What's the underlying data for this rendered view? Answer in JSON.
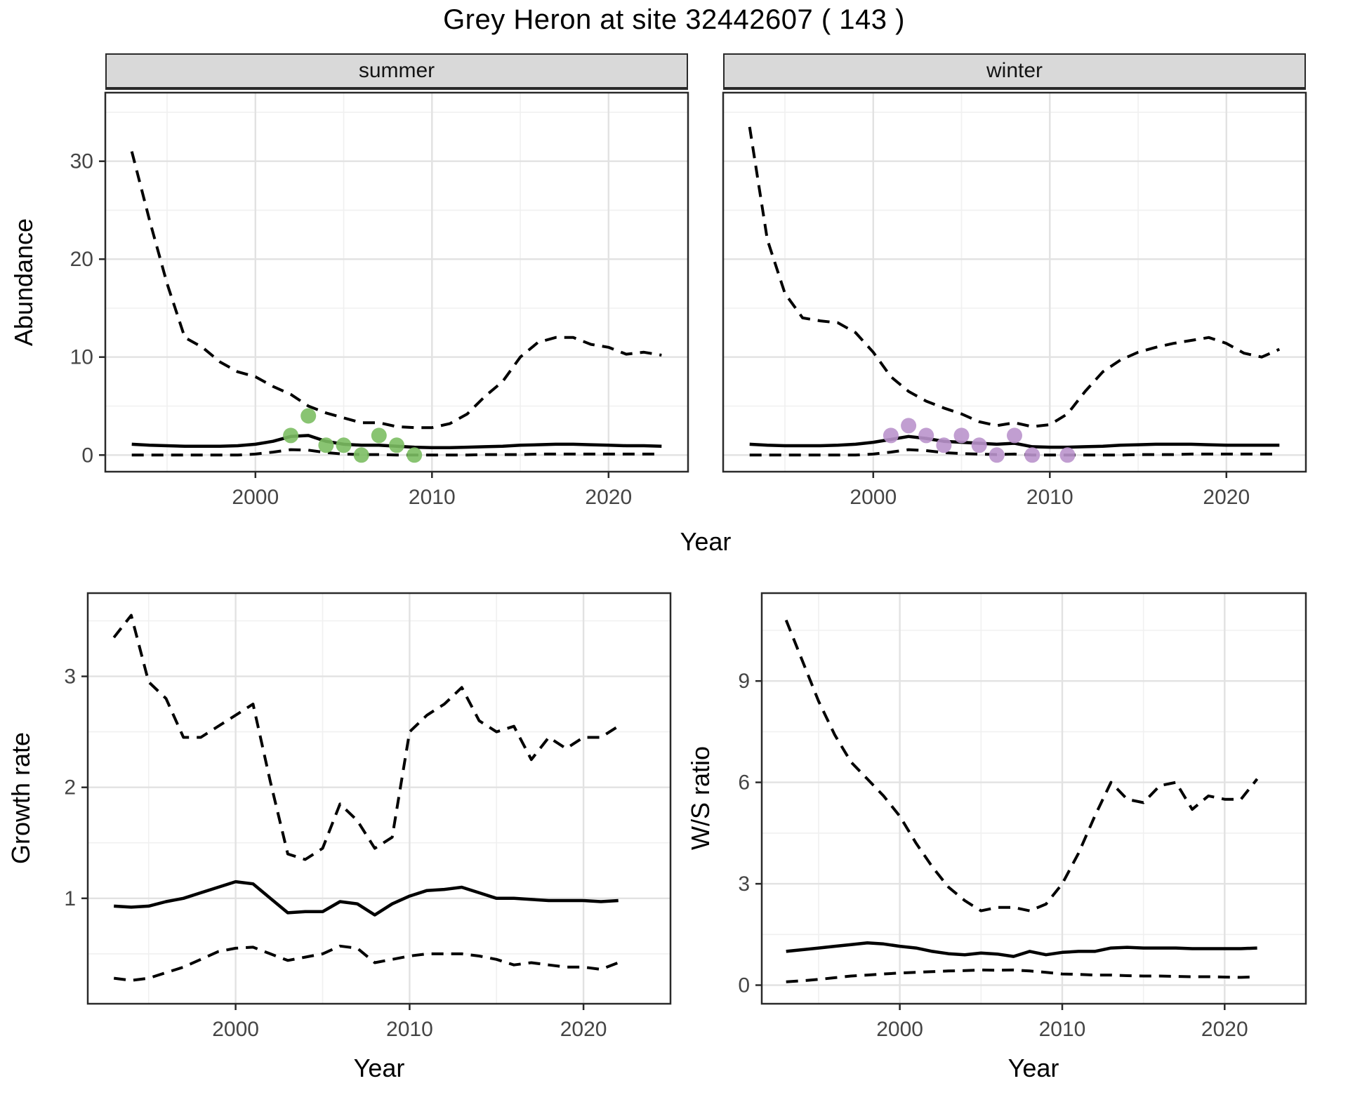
{
  "title": "Grey Heron at site 32442607 ( 143 )",
  "facets": [
    {
      "label": "summer"
    },
    {
      "label": "winter"
    }
  ],
  "axis_labels": {
    "abundance": "Abundance",
    "year": "Year",
    "growth_rate": "Growth rate",
    "ws_ratio": "W/S ratio"
  },
  "colors": {
    "summer_points": "#7cbe63",
    "winter_points": "#ba93cc",
    "line": "#000000",
    "grid_major": "#e2e2e2",
    "grid_minor": "#f0f0f0",
    "panel_border": "#2a2a2a",
    "strip_fill": "#d9d9d9",
    "tick_text": "#454545"
  },
  "chart_data": [
    {
      "id": "abundance-summer",
      "type": "line",
      "facet": "summer",
      "ylabel": "Abundance",
      "xlabel": "Year",
      "x": {
        "domain": [
          1991.5,
          2024.5
        ],
        "ticks": [
          2000,
          2010,
          2020
        ],
        "minor": [
          1995,
          2005,
          2015
        ]
      },
      "y": {
        "domain": [
          -1.7,
          37
        ],
        "ticks": [
          0,
          10,
          20,
          30
        ],
        "minor": [
          5,
          15,
          25,
          35
        ],
        "show_labels": true
      },
      "years_start": 1993,
      "series": [
        {
          "name": "ci-upper",
          "style": "dashed",
          "values": [
            31,
            24,
            17.5,
            12,
            11,
            9.5,
            8.5,
            8,
            7,
            6.2,
            5,
            4.3,
            3.8,
            3.3,
            3.3,
            2.9,
            2.8,
            2.8,
            3.2,
            4.2,
            6,
            7.5,
            10,
            11.5,
            12,
            12,
            11.3,
            11,
            10.3,
            10.5,
            10.2
          ]
        },
        {
          "name": "median",
          "style": "solid",
          "values": [
            1.1,
            1.0,
            0.95,
            0.9,
            0.9,
            0.9,
            0.95,
            1.1,
            1.4,
            1.9,
            2.0,
            1.4,
            1.1,
            1.0,
            1.0,
            0.9,
            0.8,
            0.75,
            0.75,
            0.8,
            0.85,
            0.9,
            1.0,
            1.05,
            1.1,
            1.1,
            1.05,
            1.0,
            0.95,
            0.95,
            0.9
          ]
        },
        {
          "name": "ci-lower",
          "style": "dashed",
          "values": [
            0,
            0,
            0,
            0,
            0,
            0,
            0,
            0.1,
            0.3,
            0.55,
            0.5,
            0.25,
            0.1,
            0.05,
            0.05,
            0,
            0,
            0,
            0,
            0,
            0.05,
            0.05,
            0.05,
            0.1,
            0.1,
            0.1,
            0.1,
            0.1,
            0.1,
            0.1,
            0.1
          ]
        }
      ],
      "points": {
        "name": "observed-counts-summer",
        "color": "#7cbe63",
        "data": [
          [
            2002,
            2
          ],
          [
            2003,
            4
          ],
          [
            2004,
            1
          ],
          [
            2005,
            1
          ],
          [
            2006,
            0
          ],
          [
            2007,
            2
          ],
          [
            2008,
            1
          ],
          [
            2009,
            0
          ]
        ]
      }
    },
    {
      "id": "abundance-winter",
      "type": "line",
      "facet": "winter",
      "ylabel": "Abundance",
      "xlabel": "Year",
      "x": {
        "domain": [
          1991.5,
          2024.5
        ],
        "ticks": [
          2000,
          2010,
          2020
        ],
        "minor": [
          1995,
          2005,
          2015
        ]
      },
      "y": {
        "domain": [
          -1.7,
          37
        ],
        "ticks": [
          0,
          10,
          20,
          30
        ],
        "minor": [
          5,
          15,
          25,
          35
        ],
        "show_labels": false
      },
      "years_start": 1993,
      "series": [
        {
          "name": "ci-upper",
          "style": "dashed",
          "values": [
            33.5,
            22,
            16.5,
            14,
            13.7,
            13.5,
            12.5,
            10.5,
            8,
            6.5,
            5.5,
            4.8,
            4.2,
            3.4,
            3.0,
            3.3,
            2.9,
            3.1,
            4.2,
            6.5,
            8.5,
            9.7,
            10.5,
            11,
            11.4,
            11.7,
            12,
            11.4,
            10.4,
            10,
            10.8
          ]
        },
        {
          "name": "median",
          "style": "solid",
          "values": [
            1.1,
            1.0,
            0.95,
            0.95,
            0.95,
            1.0,
            1.1,
            1.3,
            1.6,
            1.9,
            1.7,
            1.4,
            1.3,
            1.2,
            1.1,
            1.2,
            0.85,
            0.8,
            0.8,
            0.85,
            0.9,
            1.0,
            1.05,
            1.1,
            1.1,
            1.1,
            1.05,
            1.0,
            1.0,
            1.0,
            1.0
          ]
        },
        {
          "name": "ci-lower",
          "style": "dashed",
          "values": [
            0,
            0,
            0,
            0,
            0,
            0,
            0,
            0.1,
            0.3,
            0.55,
            0.45,
            0.25,
            0.15,
            0.1,
            0.05,
            0.1,
            0,
            0,
            0,
            0,
            0,
            0,
            0.05,
            0.05,
            0.05,
            0.1,
            0.1,
            0.1,
            0.1,
            0.1,
            0.1
          ]
        }
      ],
      "points": {
        "name": "observed-counts-winter",
        "color": "#ba93cc",
        "data": [
          [
            2001,
            2
          ],
          [
            2002,
            3
          ],
          [
            2003,
            2
          ],
          [
            2004,
            1
          ],
          [
            2005,
            2
          ],
          [
            2006,
            1
          ],
          [
            2007,
            0
          ],
          [
            2008,
            2
          ],
          [
            2009,
            0
          ],
          [
            2011,
            0
          ]
        ]
      }
    },
    {
      "id": "growth-rate",
      "type": "line",
      "facet": null,
      "ylabel": "Growth rate",
      "xlabel": "Year",
      "x": {
        "domain": [
          1991.5,
          2025
        ],
        "ticks": [
          2000,
          2010,
          2020
        ],
        "minor": [
          1995,
          2005,
          2015
        ]
      },
      "y": {
        "domain": [
          0.05,
          3.75
        ],
        "ticks": [
          1,
          2,
          3
        ],
        "minor": [
          0.5,
          1.5,
          2.5,
          3.5
        ],
        "show_labels": true
      },
      "years_start": 1993,
      "series": [
        {
          "name": "ci-upper",
          "style": "dashed",
          "values": [
            3.35,
            3.55,
            2.95,
            2.8,
            2.45,
            2.45,
            2.55,
            2.65,
            2.75,
            2.05,
            1.4,
            1.35,
            1.45,
            1.85,
            1.7,
            1.45,
            1.55,
            2.5,
            2.65,
            2.75,
            2.9,
            2.6,
            2.5,
            2.55,
            2.25,
            2.45,
            2.35,
            2.45,
            2.45,
            2.55
          ]
        },
        {
          "name": "median",
          "style": "solid",
          "values": [
            0.93,
            0.92,
            0.93,
            0.97,
            1.0,
            1.05,
            1.1,
            1.15,
            1.13,
            1.0,
            0.87,
            0.88,
            0.88,
            0.97,
            0.95,
            0.85,
            0.95,
            1.02,
            1.07,
            1.08,
            1.1,
            1.05,
            1.0,
            1.0,
            0.99,
            0.98,
            0.98,
            0.98,
            0.97,
            0.98
          ]
        },
        {
          "name": "ci-lower",
          "style": "dashed",
          "values": [
            0.28,
            0.26,
            0.28,
            0.33,
            0.38,
            0.45,
            0.52,
            0.55,
            0.56,
            0.5,
            0.44,
            0.47,
            0.5,
            0.57,
            0.55,
            0.42,
            0.45,
            0.48,
            0.5,
            0.5,
            0.5,
            0.48,
            0.45,
            0.4,
            0.42,
            0.4,
            0.38,
            0.38,
            0.36,
            0.42
          ]
        }
      ],
      "points": null
    },
    {
      "id": "ws-ratio",
      "type": "line",
      "facet": null,
      "ylabel": "W/S ratio",
      "xlabel": "Year",
      "x": {
        "domain": [
          1991.5,
          2025
        ],
        "ticks": [
          2000,
          2010,
          2020
        ],
        "minor": [
          1995,
          2005,
          2015
        ]
      },
      "y": {
        "domain": [
          -0.55,
          11.6
        ],
        "ticks": [
          0,
          3,
          6,
          9
        ],
        "minor": [
          1.5,
          4.5,
          7.5,
          10.5
        ],
        "show_labels": true
      },
      "years_start": 1993,
      "series": [
        {
          "name": "ci-upper",
          "style": "dashed",
          "values": [
            10.8,
            9.6,
            8.4,
            7.4,
            6.6,
            6.1,
            5.6,
            5.0,
            4.2,
            3.5,
            2.9,
            2.5,
            2.2,
            2.3,
            2.3,
            2.2,
            2.4,
            3.0,
            3.9,
            5.0,
            6.0,
            5.5,
            5.4,
            5.9,
            6.0,
            5.2,
            5.6,
            5.5,
            5.5,
            6.1
          ]
        },
        {
          "name": "median",
          "style": "solid",
          "values": [
            1.0,
            1.05,
            1.1,
            1.15,
            1.2,
            1.25,
            1.22,
            1.15,
            1.1,
            1.0,
            0.93,
            0.9,
            0.95,
            0.92,
            0.85,
            1.0,
            0.9,
            0.97,
            1.0,
            1.0,
            1.1,
            1.12,
            1.1,
            1.1,
            1.1,
            1.08,
            1.08,
            1.08,
            1.08,
            1.1
          ]
        },
        {
          "name": "ci-lower",
          "style": "dashed",
          "values": [
            0.1,
            0.13,
            0.17,
            0.22,
            0.27,
            0.3,
            0.33,
            0.36,
            0.38,
            0.4,
            0.42,
            0.43,
            0.45,
            0.44,
            0.45,
            0.42,
            0.38,
            0.33,
            0.32,
            0.3,
            0.3,
            0.28,
            0.27,
            0.27,
            0.26,
            0.25,
            0.25,
            0.24,
            0.23,
            0.25
          ]
        }
      ],
      "points": null
    }
  ]
}
